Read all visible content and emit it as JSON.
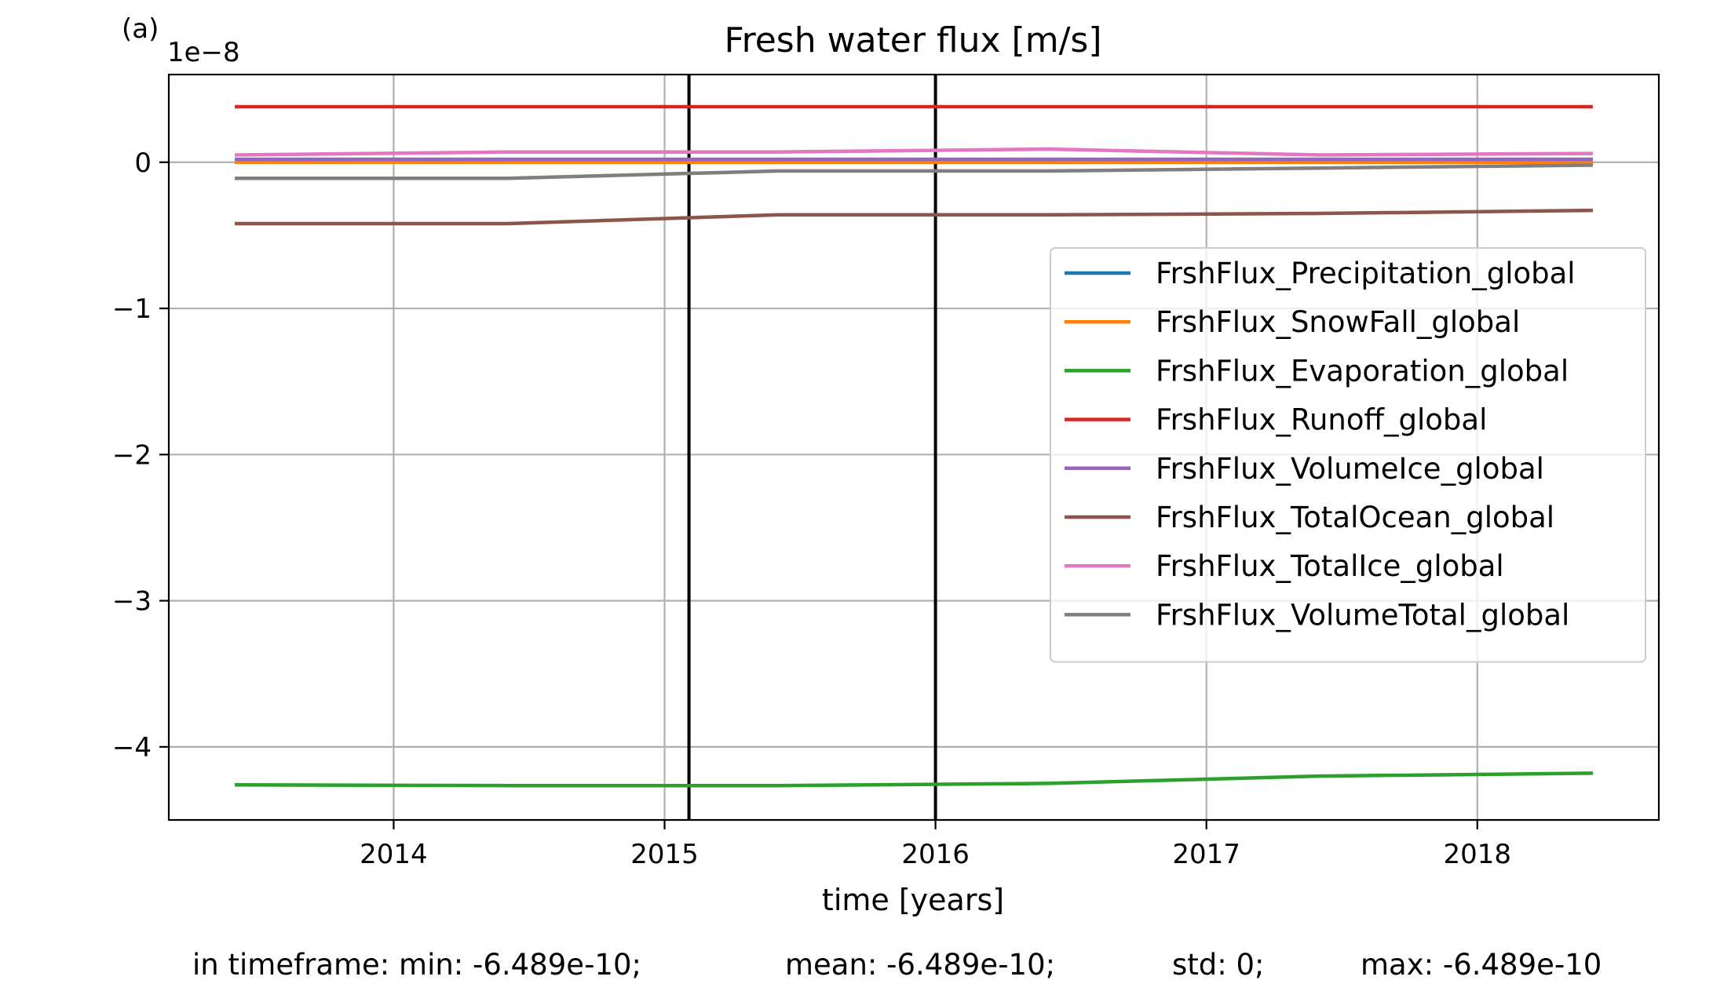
{
  "chart_data": {
    "type": "line",
    "panel_label": "(a)",
    "title": "Fresh water flux [m/s]",
    "xlabel": "time [years]",
    "ylabel": "",
    "y_offset_label": "1e−8",
    "x_range": [
      2013.17,
      2018.67
    ],
    "ylim": [
      -4.5,
      0.6
    ],
    "y_scale_factor": 1e-08,
    "x_ticks": [
      {
        "value": 2014,
        "label": "2014"
      },
      {
        "value": 2015,
        "label": "2015"
      },
      {
        "value": 2016,
        "label": "2016"
      },
      {
        "value": 2017,
        "label": "2017"
      },
      {
        "value": 2018,
        "label": "2018"
      }
    ],
    "y_ticks": [
      {
        "value": 0,
        "label": "0"
      },
      {
        "value": -1,
        "label": "−1"
      },
      {
        "value": -2,
        "label": "−2"
      },
      {
        "value": -3,
        "label": "−3"
      },
      {
        "value": -4,
        "label": "−4"
      }
    ],
    "grid": true,
    "legend_position": "right, upper-middle",
    "vertical_markers": [
      2015.09,
      2016.0
    ],
    "x": [
      2013.42,
      2014.42,
      2015.42,
      2016.42,
      2017.42,
      2018.42
    ],
    "series": [
      {
        "name": "FrshFlux_Precipitation_global",
        "color": "#1f77b4",
        "values": [
          0.0,
          0.0,
          0.0,
          0.0,
          0.0,
          0.0
        ]
      },
      {
        "name": "FrshFlux_SnowFall_global",
        "color": "#ff7f0e",
        "values": [
          0.0,
          0.0,
          0.0,
          0.0,
          0.0,
          0.0
        ]
      },
      {
        "name": "FrshFlux_Evaporation_global",
        "color": "#2ca02c",
        "values": [
          -4.26,
          -4.265,
          -4.265,
          -4.25,
          -4.2,
          -4.18
        ]
      },
      {
        "name": "FrshFlux_Runoff_global",
        "color": "#d62728",
        "values": [
          0.38,
          0.38,
          0.38,
          0.38,
          0.38,
          0.38
        ]
      },
      {
        "name": "FrshFlux_VolumeIce_global",
        "color": "#9467bd",
        "values": [
          0.02,
          0.02,
          0.02,
          0.02,
          0.02,
          0.02
        ]
      },
      {
        "name": "FrshFlux_TotalOcean_global",
        "color": "#8c564b",
        "values": [
          -0.42,
          -0.42,
          -0.36,
          -0.36,
          -0.35,
          -0.33
        ]
      },
      {
        "name": "FrshFlux_TotalIce_global",
        "color": "#e377c2",
        "values": [
          0.05,
          0.07,
          0.07,
          0.09,
          0.05,
          0.06
        ]
      },
      {
        "name": "FrshFlux_VolumeTotal_global",
        "color": "#7f7f7f",
        "values": [
          -0.11,
          -0.11,
          -0.06,
          -0.06,
          -0.04,
          -0.02
        ]
      }
    ],
    "stats": {
      "prefix": "in timeframe: min: -6.489e-10;",
      "mean": "mean: -6.489e-10;",
      "std": "std: 0;",
      "max": "max: -6.489e-10"
    }
  }
}
